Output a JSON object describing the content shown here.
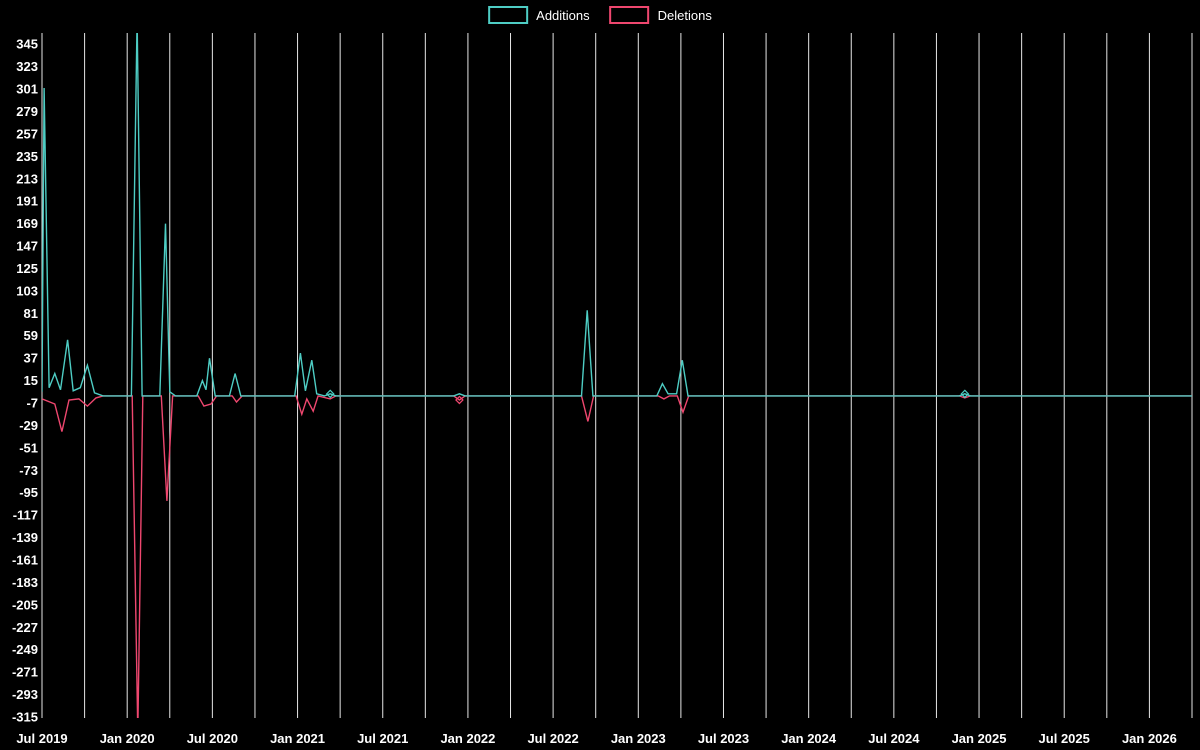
{
  "legend": {
    "items": [
      {
        "label": "Additions",
        "color": "#4ECDC4"
      },
      {
        "label": "Deletions",
        "color": "#EF476F"
      }
    ]
  },
  "colors": {
    "background": "#000000",
    "text": "#ffffff",
    "grid": "#e6e6e6",
    "additions": "#4ECDC4",
    "deletions": "#EF476F"
  },
  "chart_data": {
    "type": "line",
    "title": "",
    "xlabel": "",
    "ylabel": "",
    "x_unit": "months since Jul 2019",
    "xlim": [
      0,
      81
    ],
    "ylim": [
      -316,
      356
    ],
    "grid": {
      "vertical": true,
      "horizontal": false,
      "step_months": 3,
      "color": "#e6e6e6"
    },
    "y_ticks": [
      345,
      323,
      301,
      279,
      257,
      235,
      213,
      191,
      169,
      147,
      125,
      103,
      81,
      59,
      37,
      15,
      -7,
      -29,
      -51,
      -73,
      -95,
      -117,
      -139,
      -161,
      -183,
      -205,
      -227,
      -249,
      -271,
      -293,
      -315
    ],
    "x_ticks": [
      {
        "m": 0,
        "label": "Jul 2019"
      },
      {
        "m": 6,
        "label": "Jan 2020"
      },
      {
        "m": 12,
        "label": "Jul 2020"
      },
      {
        "m": 18,
        "label": "Jan 2021"
      },
      {
        "m": 24,
        "label": "Jul 2021"
      },
      {
        "m": 30,
        "label": "Jan 2022"
      },
      {
        "m": 36,
        "label": "Jul 2022"
      },
      {
        "m": 42,
        "label": "Jan 2023"
      },
      {
        "m": 48,
        "label": "Jul 2023"
      },
      {
        "m": 54,
        "label": "Jan 2024"
      },
      {
        "m": 60,
        "label": "Jul 2024"
      },
      {
        "m": 66,
        "label": "Jan 2025"
      },
      {
        "m": 72,
        "label": "Jul 2025"
      },
      {
        "m": 78,
        "label": "Jan 2026"
      }
    ],
    "series": [
      {
        "name": "Additions",
        "color": "#4ECDC4",
        "points": [
          [
            0,
            4
          ],
          [
            0.15,
            302
          ],
          [
            0.5,
            8
          ],
          [
            0.9,
            22
          ],
          [
            1.3,
            6
          ],
          [
            1.8,
            55
          ],
          [
            2.2,
            5
          ],
          [
            2.7,
            8
          ],
          [
            3.2,
            30
          ],
          [
            3.7,
            3
          ],
          [
            4.3,
            0
          ],
          [
            6.3,
            0
          ],
          [
            6.7,
            370
          ],
          [
            7.05,
            0
          ],
          [
            8.3,
            0
          ],
          [
            8.7,
            169
          ],
          [
            9.0,
            4
          ],
          [
            9.4,
            0
          ],
          [
            10.9,
            0
          ],
          [
            11.3,
            15
          ],
          [
            11.55,
            6
          ],
          [
            11.8,
            37
          ],
          [
            12.2,
            0
          ],
          [
            13.2,
            0
          ],
          [
            13.6,
            22
          ],
          [
            14.0,
            0
          ],
          [
            17.8,
            0
          ],
          [
            18.2,
            42
          ],
          [
            18.55,
            5
          ],
          [
            19.0,
            35
          ],
          [
            19.35,
            2
          ],
          [
            19.9,
            0
          ],
          [
            20.3,
            2
          ],
          [
            20.7,
            0
          ],
          [
            29.0,
            0
          ],
          [
            29.4,
            2
          ],
          [
            29.8,
            0
          ],
          [
            38.0,
            0
          ],
          [
            38.4,
            84
          ],
          [
            38.8,
            0
          ],
          [
            43.3,
            0
          ],
          [
            43.7,
            12
          ],
          [
            44.1,
            2
          ],
          [
            44.7,
            2
          ],
          [
            45.1,
            35
          ],
          [
            45.5,
            0
          ],
          [
            64.6,
            0
          ],
          [
            65.0,
            2
          ],
          [
            65.4,
            0
          ],
          [
            81,
            0
          ]
        ]
      },
      {
        "name": "Deletions",
        "color": "#EF476F",
        "points": [
          [
            0,
            -3
          ],
          [
            0.9,
            -8
          ],
          [
            1.4,
            -35
          ],
          [
            1.9,
            -4
          ],
          [
            2.6,
            -3
          ],
          [
            3.2,
            -10
          ],
          [
            3.8,
            -2
          ],
          [
            4.3,
            0
          ],
          [
            6.35,
            0
          ],
          [
            6.75,
            -330
          ],
          [
            7.1,
            0
          ],
          [
            8.4,
            0
          ],
          [
            8.8,
            -103
          ],
          [
            9.2,
            0
          ],
          [
            11.0,
            0
          ],
          [
            11.4,
            -10
          ],
          [
            11.9,
            -8
          ],
          [
            12.3,
            0
          ],
          [
            13.4,
            0
          ],
          [
            13.7,
            -6
          ],
          [
            14.1,
            0
          ],
          [
            17.9,
            0
          ],
          [
            18.3,
            -18
          ],
          [
            18.65,
            -3
          ],
          [
            19.1,
            -15
          ],
          [
            19.45,
            0
          ],
          [
            20.3,
            -3
          ],
          [
            20.7,
            0
          ],
          [
            29.0,
            0
          ],
          [
            29.4,
            -4
          ],
          [
            29.8,
            0
          ],
          [
            38.0,
            0
          ],
          [
            38.45,
            -25
          ],
          [
            38.85,
            0
          ],
          [
            43.4,
            0
          ],
          [
            43.8,
            -3
          ],
          [
            44.2,
            0
          ],
          [
            44.75,
            0
          ],
          [
            45.15,
            -16
          ],
          [
            45.55,
            0
          ],
          [
            64.6,
            0
          ],
          [
            65.0,
            -2
          ],
          [
            65.4,
            0
          ],
          [
            81,
            0
          ]
        ]
      }
    ],
    "markers": [
      {
        "series": "Additions",
        "m": 20.3,
        "v": 2
      },
      {
        "series": "Additions",
        "m": 65.0,
        "v": 2
      },
      {
        "series": "Deletions",
        "m": 29.4,
        "v": -4
      }
    ]
  }
}
